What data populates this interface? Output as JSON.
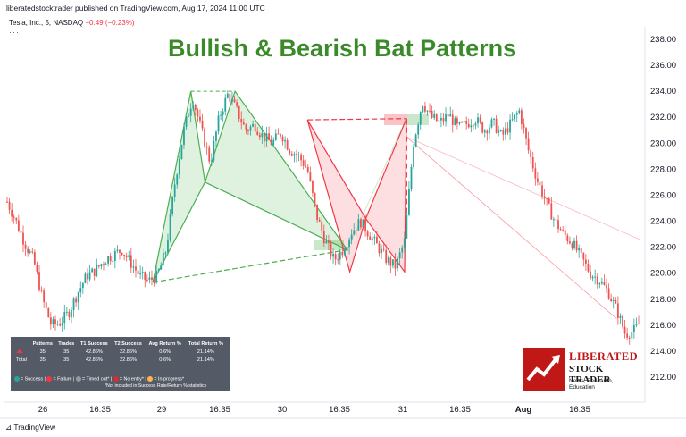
{
  "header": {
    "published": "liberatedstocktrader published on TradingView.com, Aug 17, 2024 11:00 UTC",
    "symbol": "Tesla, Inc., 5, NASDAQ",
    "change": "−0.49 (−0.23%)",
    "menu": "···"
  },
  "title": "Bullish & Bearish Bat Patterns",
  "chart_data": {
    "type": "line",
    "title": "Bullish & Bearish Bat Patterns",
    "xlabel": "",
    "ylabel": "",
    "ylim": [
      211,
      239
    ],
    "grid": false,
    "y_axis_position": "right",
    "y_ticks": [
      "238.00",
      "236.00",
      "234.00",
      "232.00",
      "230.00",
      "228.00",
      "226.00",
      "224.00",
      "222.00",
      "220.00",
      "218.00",
      "216.00",
      "214.00",
      "212.00"
    ],
    "x_ticks": [
      "26",
      "16:35",
      "29",
      "16:35",
      "30",
      "16:35",
      "31",
      "16:35",
      "Aug",
      "16:35"
    ],
    "series": [
      {
        "name": "",
        "x": [
          0,
          10,
          20,
          30,
          40,
          50,
          60,
          70,
          80,
          90,
          100,
          110,
          120,
          130,
          140,
          150,
          160,
          170,
          180,
          190,
          200,
          210,
          220,
          230,
          240,
          250,
          260,
          270,
          280,
          290,
          300,
          310,
          320,
          330,
          340,
          350,
          360,
          370,
          380,
          390,
          400,
          410,
          420,
          430,
          440,
          450,
          460,
          470,
          480,
          490,
          500,
          510,
          520,
          530,
          540,
          550,
          560,
          570,
          580,
          590,
          600,
          610,
          620,
          630,
          640,
          650,
          660,
          670,
          680,
          690,
          700,
          710,
          716
        ],
        "values": [
          225.5,
          224.0,
          222.3,
          221.0,
          218.0,
          216.0,
          216.2,
          217.0,
          218.5,
          219.8,
          220.2,
          221.0,
          221.4,
          221.8,
          220.8,
          219.8,
          219.4,
          219.8,
          221.8,
          227.0,
          231.0,
          233.5,
          231.0,
          228.5,
          232.0,
          233.8,
          232.5,
          231.0,
          231.4,
          230.5,
          230.0,
          230.8,
          229.5,
          229.0,
          228.0,
          224.5,
          222.5,
          221.0,
          221.8,
          223.2,
          224.0,
          223.0,
          222.0,
          221.0,
          220.5,
          222.5,
          230.0,
          233.2,
          232.0,
          231.6,
          232.2,
          231.2,
          231.5,
          231.9,
          231.0,
          231.6,
          230.5,
          231.5,
          232.5,
          229.5,
          227.2,
          225.5,
          224.0,
          223.0,
          222.3,
          221.2,
          220.0,
          219.5,
          218.6,
          217.2,
          215.3,
          215.6,
          216.2
        ]
      }
    ],
    "annotations": {
      "bullish_bat": {
        "X": [
          165,
          219.3
        ],
        "A": [
          208,
          234.0
        ],
        "B": [
          224,
          227.0
        ],
        "C": [
          258,
          234.0
        ],
        "D": [
          385,
          221.8
        ]
      },
      "bearish_bat": {
        "X": [
          340,
          231.8
        ],
        "A": [
          388,
          220.1
        ],
        "B": [
          406,
          224.2
        ],
        "C": [
          450,
          220.1
        ],
        "D": [
          452,
          231.9
        ]
      },
      "pattern_lines_color": "#4caf50",
      "bearish_color": "#f23645",
      "candle_up": "#26a69a",
      "candle_down": "#ef5350"
    }
  },
  "stats": {
    "columns": [
      "",
      "Patterns",
      "Trades",
      "T1 Success",
      "T2 Success",
      "Avg Return %",
      "Total Return %"
    ],
    "rows": [
      [
        "",
        "35",
        "35",
        "42.86%",
        "22.86%",
        "0.6%",
        "21.14%"
      ],
      [
        "Total",
        "35",
        "35",
        "42.86%",
        "22.86%",
        "0.6%",
        "21.14%"
      ]
    ],
    "legend_success": "= Success",
    "legend_failure": "= Failure",
    "legend_timeout": "= Timed out*",
    "legend_noentry": "= No entry*",
    "legend_progress": "= In progress*",
    "note": "*Not included in Success Rate/Return % statistics"
  },
  "logo": {
    "line1": "LIBERATED",
    "line2": "STOCK TRADER",
    "line3": "News, Research, Education",
    "brand_color": "#c01717"
  },
  "footer": "TradingView"
}
